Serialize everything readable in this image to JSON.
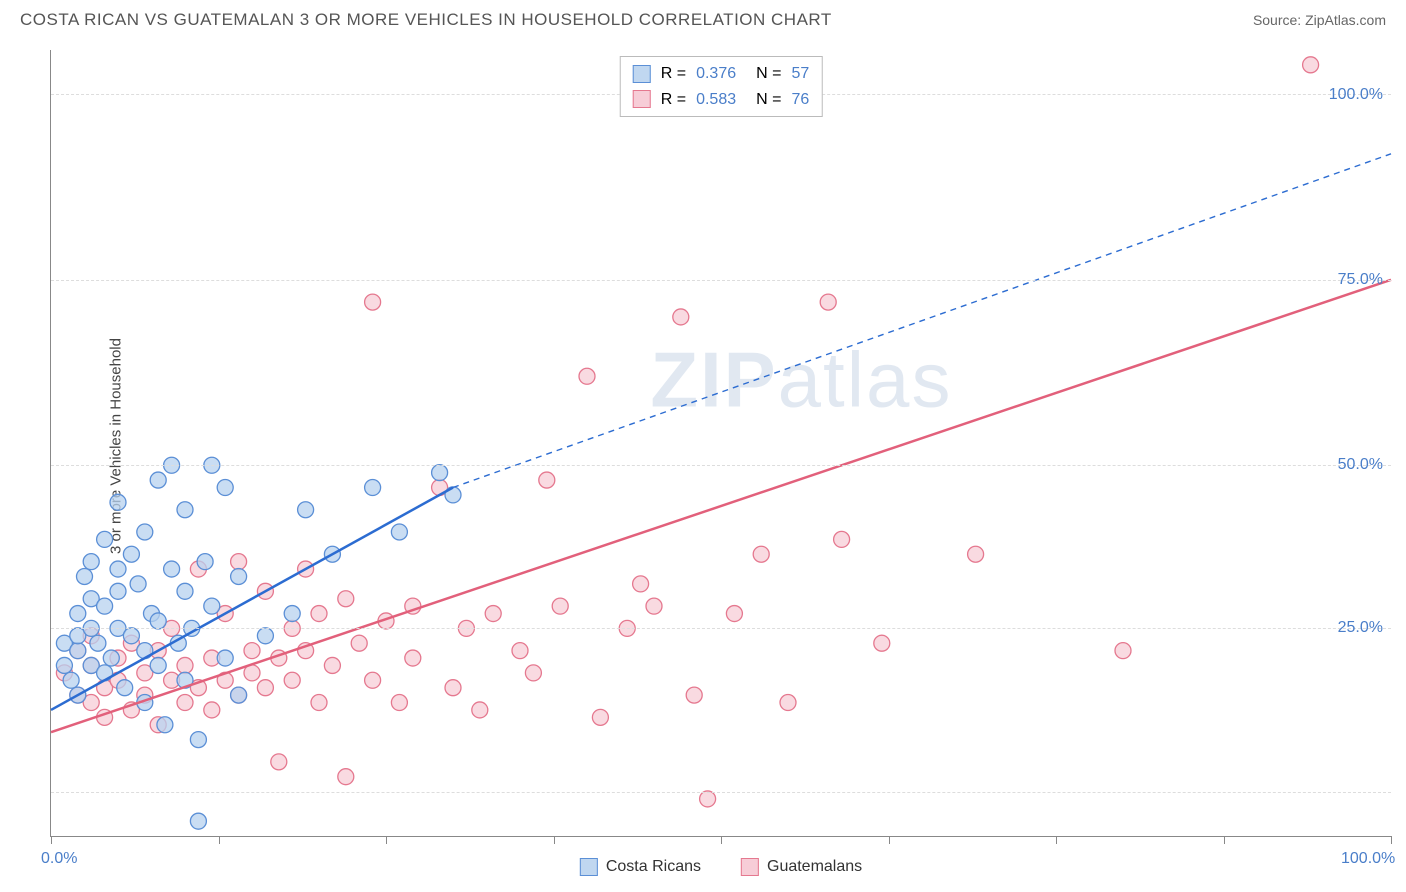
{
  "title": "COSTA RICAN VS GUATEMALAN 3 OR MORE VEHICLES IN HOUSEHOLD CORRELATION CHART",
  "source": "Source: ZipAtlas.com",
  "y_axis_label": "3 or more Vehicles in Household",
  "watermark": "ZIPatlas",
  "chart": {
    "type": "scatter",
    "background_color": "#ffffff",
    "grid_color": "#dddddd",
    "axis_color": "#888888",
    "xlim": [
      0,
      100
    ],
    "ylim": [
      0,
      106
    ],
    "x_ticks": [
      0,
      12.5,
      25,
      37.5,
      50,
      62.5,
      75,
      87.5,
      100
    ],
    "x_tick_labels": {
      "0": "0.0%",
      "100": "100.0%"
    },
    "y_gridlines": [
      6,
      28,
      50,
      75,
      100
    ],
    "y_tick_labels": {
      "28": "25.0%",
      "50": "50.0%",
      "75": "75.0%",
      "100": "100.0%"
    },
    "axis_label_color": "#4a7ec9",
    "axis_label_fontsize": 16
  },
  "legend_top": {
    "rows": [
      {
        "swatch": "blue",
        "r_label": "R =",
        "r_val": "0.376",
        "n_label": "N =",
        "n_val": "57"
      },
      {
        "swatch": "pink",
        "r_label": "R =",
        "r_val": "0.583",
        "n_label": "N =",
        "n_val": "76"
      }
    ]
  },
  "legend_bottom": {
    "items": [
      {
        "swatch": "blue",
        "label": "Costa Ricans"
      },
      {
        "swatch": "pink",
        "label": "Guatemalans"
      }
    ]
  },
  "series": {
    "costa_ricans": {
      "color_fill": "#b7d2ef",
      "color_stroke": "#5b8fd6",
      "marker_radius": 8,
      "opacity": 0.75,
      "trend": {
        "x1": 0,
        "y1": 17,
        "x2": 30,
        "y2": 47,
        "color": "#2c6cd1",
        "width": 2.5,
        "dash": "none",
        "ext_x2": 100,
        "ext_y2": 92,
        "ext_dash": "6,5",
        "ext_width": 1.4
      },
      "points": [
        [
          1,
          23
        ],
        [
          1,
          26
        ],
        [
          1.5,
          21
        ],
        [
          2,
          30
        ],
        [
          2,
          25
        ],
        [
          2,
          27
        ],
        [
          2,
          19
        ],
        [
          2.5,
          35
        ],
        [
          3,
          28
        ],
        [
          3,
          23
        ],
        [
          3,
          32
        ],
        [
          3,
          37
        ],
        [
          3.5,
          26
        ],
        [
          4,
          31
        ],
        [
          4,
          40
        ],
        [
          4,
          22
        ],
        [
          4.5,
          24
        ],
        [
          5,
          36
        ],
        [
          5,
          28
        ],
        [
          5,
          45
        ],
        [
          5,
          33
        ],
        [
          5.5,
          20
        ],
        [
          6,
          38
        ],
        [
          6,
          27
        ],
        [
          6.5,
          34
        ],
        [
          7,
          25
        ],
        [
          7,
          41
        ],
        [
          7,
          18
        ],
        [
          7.5,
          30
        ],
        [
          8,
          29
        ],
        [
          8,
          48
        ],
        [
          8,
          23
        ],
        [
          8.5,
          15
        ],
        [
          9,
          36
        ],
        [
          9,
          50
        ],
        [
          9.5,
          26
        ],
        [
          10,
          33
        ],
        [
          10,
          21
        ],
        [
          10,
          44
        ],
        [
          10.5,
          28
        ],
        [
          11,
          2
        ],
        [
          11,
          13
        ],
        [
          11.5,
          37
        ],
        [
          12,
          31
        ],
        [
          12,
          50
        ],
        [
          13,
          24
        ],
        [
          13,
          47
        ],
        [
          14,
          35
        ],
        [
          14,
          19
        ],
        [
          16,
          27
        ],
        [
          18,
          30
        ],
        [
          19,
          44
        ],
        [
          21,
          38
        ],
        [
          24,
          47
        ],
        [
          26,
          41
        ],
        [
          29,
          49
        ],
        [
          30,
          46
        ]
      ]
    },
    "guatemalans": {
      "color_fill": "#f7cdd7",
      "color_stroke": "#e5788f",
      "marker_radius": 8,
      "opacity": 0.75,
      "trend": {
        "x1": 0,
        "y1": 14,
        "x2": 100,
        "y2": 75,
        "color": "#e2607b",
        "width": 2.5,
        "dash": "none"
      },
      "points": [
        [
          1,
          22
        ],
        [
          2,
          19
        ],
        [
          2,
          25
        ],
        [
          3,
          18
        ],
        [
          3,
          23
        ],
        [
          3,
          27
        ],
        [
          4,
          20
        ],
        [
          4,
          16
        ],
        [
          5,
          24
        ],
        [
          5,
          21
        ],
        [
          6,
          17
        ],
        [
          6,
          26
        ],
        [
          7,
          22
        ],
        [
          7,
          19
        ],
        [
          8,
          25
        ],
        [
          8,
          15
        ],
        [
          9,
          21
        ],
        [
          9,
          28
        ],
        [
          10,
          18
        ],
        [
          10,
          23
        ],
        [
          11,
          20
        ],
        [
          11,
          36
        ],
        [
          12,
          24
        ],
        [
          12,
          17
        ],
        [
          13,
          21
        ],
        [
          13,
          30
        ],
        [
          14,
          19
        ],
        [
          14,
          37
        ],
        [
          15,
          22
        ],
        [
          15,
          25
        ],
        [
          16,
          20
        ],
        [
          16,
          33
        ],
        [
          17,
          24
        ],
        [
          17,
          10
        ],
        [
          18,
          28
        ],
        [
          18,
          21
        ],
        [
          19,
          25
        ],
        [
          19,
          36
        ],
        [
          20,
          18
        ],
        [
          20,
          30
        ],
        [
          21,
          23
        ],
        [
          22,
          8
        ],
        [
          22,
          32
        ],
        [
          23,
          26
        ],
        [
          24,
          21
        ],
        [
          24,
          72
        ],
        [
          25,
          29
        ],
        [
          26,
          18
        ],
        [
          27,
          31
        ],
        [
          27,
          24
        ],
        [
          29,
          47
        ],
        [
          30,
          20
        ],
        [
          31,
          28
        ],
        [
          32,
          17
        ],
        [
          33,
          30
        ],
        [
          35,
          25
        ],
        [
          36,
          22
        ],
        [
          38,
          31
        ],
        [
          40,
          62
        ],
        [
          41,
          16
        ],
        [
          43,
          28
        ],
        [
          45,
          31
        ],
        [
          47,
          70
        ],
        [
          48,
          19
        ],
        [
          49,
          5
        ],
        [
          51,
          30
        ],
        [
          53,
          38
        ],
        [
          55,
          18
        ],
        [
          58,
          72
        ],
        [
          59,
          40
        ],
        [
          62,
          26
        ],
        [
          69,
          38
        ],
        [
          80,
          25
        ],
        [
          94,
          104
        ],
        [
          37,
          48
        ],
        [
          44,
          34
        ]
      ]
    }
  }
}
